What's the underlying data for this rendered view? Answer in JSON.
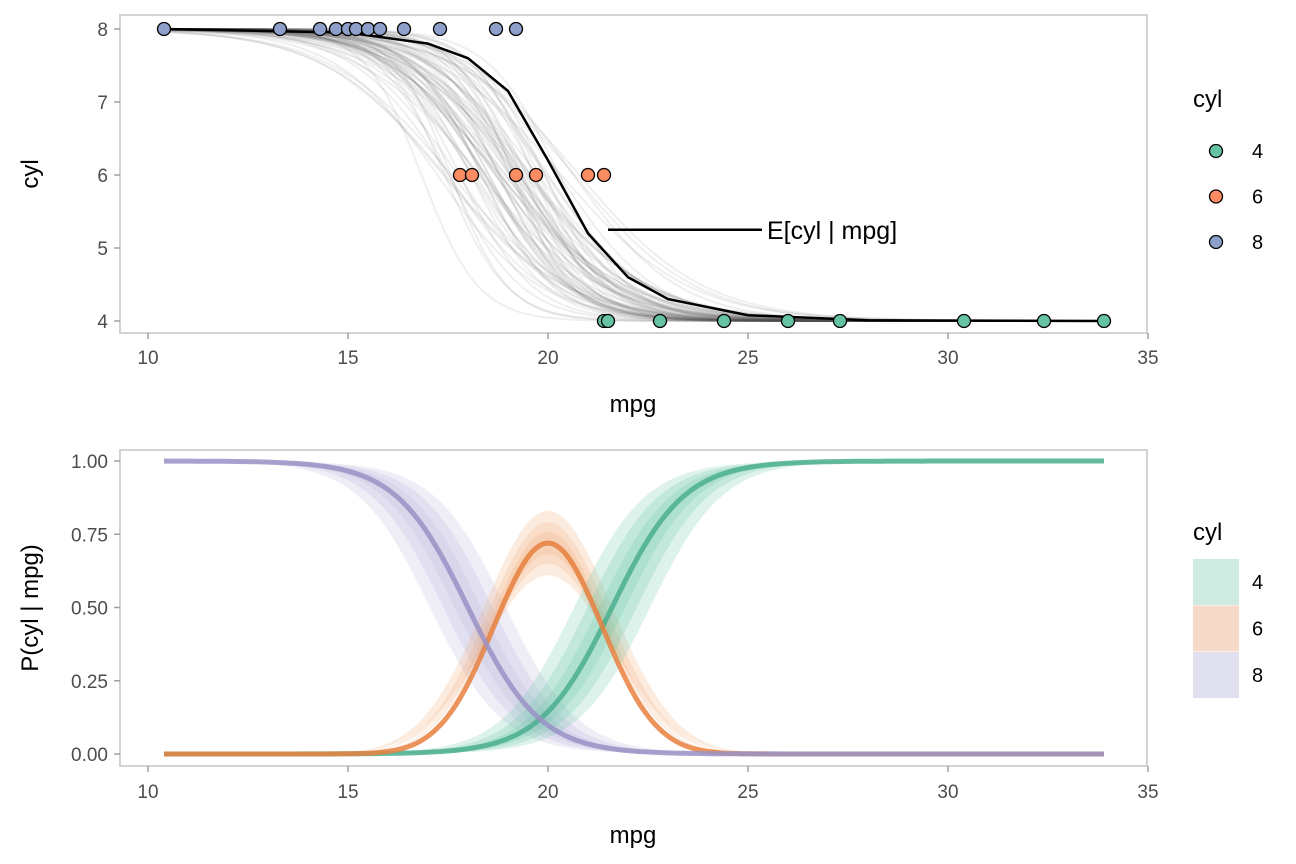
{
  "colors": {
    "c4": "#66c2a5",
    "c6": "#fc8d62",
    "c8": "#8da0cb",
    "line4": "#4bae8e",
    "line6": "#e8803e",
    "line8": "#9a92c6",
    "band4": "#66c2a5",
    "band6": "#f0a773",
    "band8": "#b8b3d9",
    "panel_border": "#d3d3d3"
  },
  "chart_data": [
    {
      "type": "scatter",
      "title": "",
      "xlabel": "mpg",
      "ylabel": "cyl",
      "xlim": [
        10,
        35
      ],
      "ylim": [
        4,
        8
      ],
      "x_ticks": [
        "10",
        "15",
        "20",
        "25",
        "30",
        "35"
      ],
      "y_ticks": [
        "4",
        "5",
        "6",
        "7",
        "8"
      ],
      "grid": false,
      "legend": {
        "title": "cyl",
        "position": "right",
        "labels": [
          "4",
          "6",
          "8"
        ]
      },
      "points": [
        {
          "cyl": 8,
          "mpg": [
            10.4,
            13.3,
            14.3,
            14.7,
            15.0,
            15.2,
            15.5,
            15.8,
            16.4,
            17.3,
            18.7,
            19.2
          ]
        },
        {
          "cyl": 6,
          "mpg": [
            17.8,
            18.1,
            19.2,
            19.7,
            21.0,
            21.4
          ]
        },
        {
          "cyl": 4,
          "mpg": [
            21.4,
            21.5,
            22.8,
            24.4,
            26.0,
            27.3,
            30.4,
            32.4,
            33.9
          ]
        }
      ],
      "expected_curve": {
        "x": [
          10.4,
          15,
          17,
          18,
          19,
          20,
          21,
          22,
          23,
          25,
          28,
          33.9
        ],
        "y": [
          8.0,
          7.95,
          7.8,
          7.6,
          7.15,
          6.2,
          5.2,
          4.6,
          4.3,
          4.08,
          4.01,
          4.0
        ]
      },
      "annotation": {
        "text": "E[cyl | mpg]",
        "x": 21.5,
        "y": 5.25
      }
    },
    {
      "type": "line",
      "title": "",
      "xlabel": "mpg",
      "ylabel": "P(cyl | mpg)",
      "xlim": [
        10,
        35
      ],
      "ylim": [
        0,
        1
      ],
      "x_ticks": [
        "10",
        "15",
        "20",
        "25",
        "30",
        "35"
      ],
      "y_ticks": [
        "0.00",
        "0.25",
        "0.50",
        "0.75",
        "1.00"
      ],
      "grid": false,
      "legend": {
        "title": "cyl",
        "position": "right",
        "labels": [
          "4",
          "6",
          "8"
        ]
      },
      "series": [
        {
          "name": "4",
          "x": [
            10.4,
            16,
            18,
            19,
            20,
            21,
            22,
            23,
            24,
            26,
            28,
            33.9
          ],
          "values": [
            0.0,
            0.01,
            0.03,
            0.07,
            0.15,
            0.3,
            0.55,
            0.78,
            0.9,
            0.98,
            1.0,
            1.0
          ]
        },
        {
          "name": "6",
          "x": [
            10.4,
            16,
            17,
            18,
            19,
            20,
            21,
            22,
            23,
            24,
            26,
            33.9
          ],
          "values": [
            0.0,
            0.04,
            0.14,
            0.35,
            0.6,
            0.72,
            0.58,
            0.33,
            0.12,
            0.04,
            0.0,
            0.0
          ]
        },
        {
          "name": "8",
          "x": [
            10.4,
            14,
            15,
            16,
            17,
            18,
            19,
            20,
            21,
            22,
            24,
            33.9
          ],
          "values": [
            1.0,
            0.98,
            0.96,
            0.9,
            0.78,
            0.55,
            0.3,
            0.14,
            0.06,
            0.02,
            0.0,
            0.0
          ]
        }
      ]
    }
  ]
}
